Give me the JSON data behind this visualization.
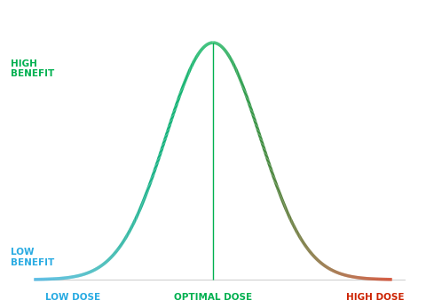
{
  "background_color": "#ffffff",
  "curve_x_min": -4.2,
  "curve_x_max": 4.2,
  "curve_sigma": 1.1,
  "curve_amplitude": 1.0,
  "optimal_line_color": "#00b050",
  "optimal_line_x": 0.0,
  "label_high_benefit": "HIGH\nBENEFIT",
  "label_low_benefit": "LOW\nBENEFIT",
  "label_low_dose": "LOW DOSE",
  "label_optimal_dose": "OPTIMAL DOSE",
  "label_high_dose": "HIGH DOSE",
  "color_low_dose": "#29abe2",
  "color_optimal_dose": "#00b050",
  "color_high_dose": "#cc2200",
  "label_fontsize": 7.5,
  "axis_label_fontsize": 7.5,
  "ylim_min": -0.12,
  "ylim_max": 1.18,
  "xlim_min": -5.0,
  "xlim_max": 5.0,
  "line_width": 2.5
}
